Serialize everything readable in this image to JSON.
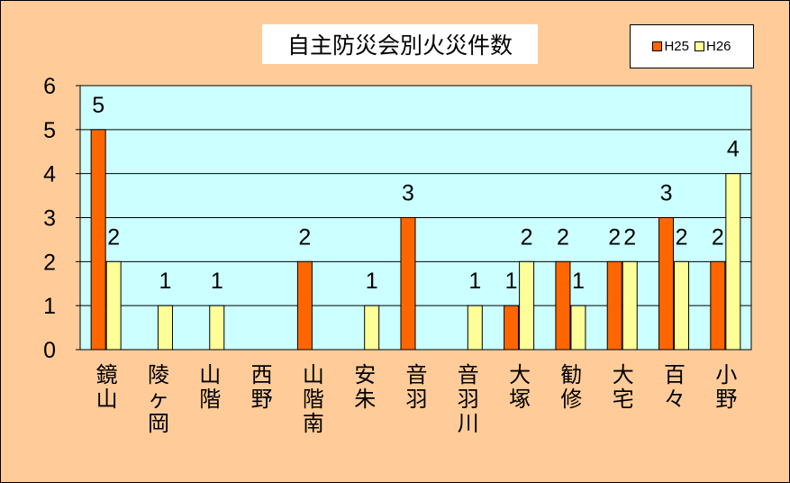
{
  "chart_data": {
    "type": "bar",
    "title": "自主防災会別火災件数",
    "categories": [
      "鏡山",
      "陵ヶ岡",
      "山階",
      "西野",
      "山階南",
      "安朱",
      "音羽",
      "音羽川",
      "大塚",
      "勧修",
      "大宅",
      "百々",
      "小野"
    ],
    "series": [
      {
        "name": "H25",
        "color": "#ff6600",
        "values": [
          5,
          0,
          0,
          0,
          2,
          0,
          3,
          0,
          1,
          2,
          2,
          3,
          2
        ]
      },
      {
        "name": "H26",
        "color": "#ffff99",
        "values": [
          2,
          1,
          1,
          0,
          0,
          1,
          0,
          1,
          2,
          1,
          2,
          2,
          4
        ]
      }
    ],
    "ylim": [
      0,
      6
    ],
    "yticks": [
      0,
      1,
      2,
      3,
      4,
      5,
      6
    ],
    "plot_background": "#ccffff",
    "background": "#ffcc99",
    "grid": true,
    "legend_position": "top-right"
  }
}
